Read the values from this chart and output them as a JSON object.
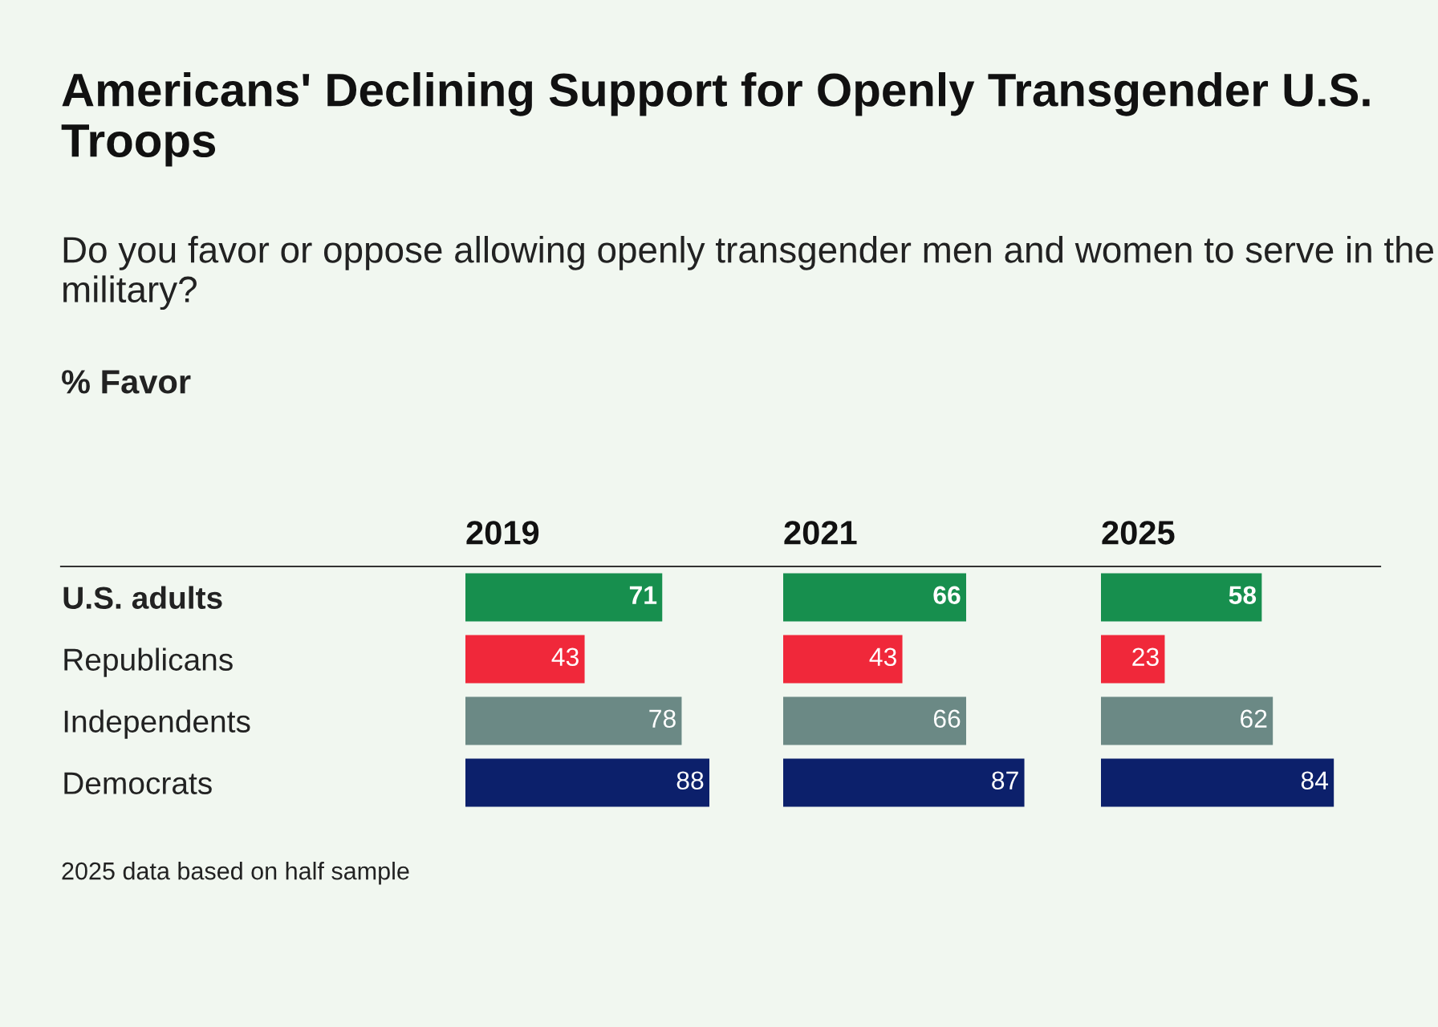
{
  "chart_data": [
    {
      "type": "bar",
      "orientation": "horizontal",
      "title": "Americans' Declining Support for Openly Transgender U.S. Troops",
      "subtitle": "Do you favor or oppose allowing openly transgender men and women to serve in the military?",
      "annotations": [
        "% Favor",
        "2025 data based on half sample"
      ],
      "xlabel": "2019",
      "categories": [
        "U.S. adults",
        "Republicans",
        "Independents",
        "Democrats"
      ],
      "values": [
        71,
        43,
        78,
        88
      ],
      "colors": [
        "#178f4e",
        "#f0283a",
        "#6b8985",
        "#0c206b"
      ],
      "data_labels": true,
      "tick_labels": "y",
      "grid": false,
      "legend": false
    },
    {
      "type": "bar",
      "orientation": "horizontal",
      "xlabel": "2021",
      "categories": [
        null,
        null,
        null,
        null
      ],
      "values": [
        66,
        43,
        66,
        87
      ],
      "colors": [
        "#178f4e",
        "#f0283a",
        "#6b8985",
        "#0c206b"
      ],
      "data_labels": true,
      "tick_labels": false,
      "grid": false,
      "legend": false
    },
    {
      "type": "bar",
      "orientation": "horizontal",
      "xlabel": "2025",
      "categories": [
        null,
        null,
        null,
        null
      ],
      "values": [
        58,
        23,
        62,
        84
      ],
      "colors": [
        "#178f4e",
        "#f0283a",
        "#6b8985",
        "#0c206b"
      ],
      "data_labels": true,
      "tick_labels": false,
      "grid": false,
      "legend": false
    }
  ]
}
